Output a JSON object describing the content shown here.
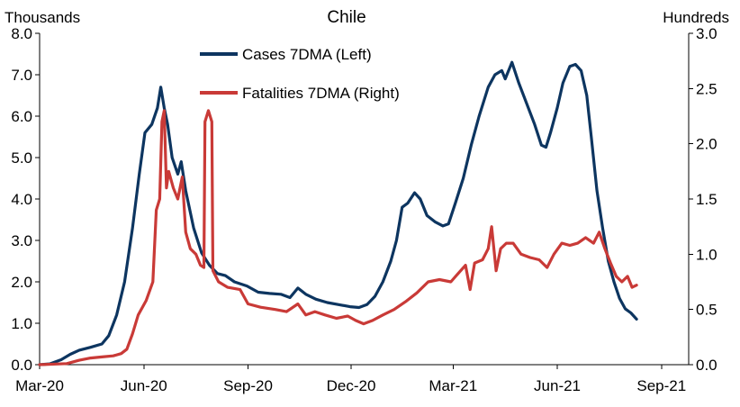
{
  "chart_data": {
    "type": "line",
    "title": "Chile",
    "left_unit_label": "Thousands",
    "right_unit_label": "Hundreds",
    "x_axis": {
      "tick_labels": [
        "Mar-20",
        "Jun-20",
        "Sep-20",
        "Dec-20",
        "Mar-21",
        "Jun-21",
        "Sep-21"
      ],
      "range": [
        "2020-03-01",
        "2021-09-25"
      ]
    },
    "y_left": {
      "range": [
        0,
        8
      ],
      "tick_labels": [
        "0.0",
        "1.0",
        "2.0",
        "3.0",
        "4.0",
        "5.0",
        "6.0",
        "7.0",
        "8.0"
      ]
    },
    "y_right": {
      "range": [
        0,
        3
      ],
      "tick_labels": [
        "0.0",
        "0.5",
        "1.0",
        "1.5",
        "2.0",
        "2.5",
        "3.0"
      ]
    },
    "grid": false,
    "legend_position": "top-center",
    "series": [
      {
        "name": "Cases 7DMA (Left)",
        "axis": "left",
        "color": "#0d3560",
        "points": [
          [
            "2020-03-01",
            0.0
          ],
          [
            "2020-03-10",
            0.02
          ],
          [
            "2020-03-20",
            0.12
          ],
          [
            "2020-03-28",
            0.25
          ],
          [
            "2020-04-05",
            0.35
          ],
          [
            "2020-04-15",
            0.42
          ],
          [
            "2020-04-25",
            0.5
          ],
          [
            "2020-05-01",
            0.7
          ],
          [
            "2020-05-08",
            1.2
          ],
          [
            "2020-05-15",
            2.0
          ],
          [
            "2020-05-22",
            3.3
          ],
          [
            "2020-05-28",
            4.6
          ],
          [
            "2020-06-02",
            5.6
          ],
          [
            "2020-06-08",
            5.8
          ],
          [
            "2020-06-13",
            6.2
          ],
          [
            "2020-06-16",
            6.7
          ],
          [
            "2020-06-19",
            6.2
          ],
          [
            "2020-06-22",
            5.8
          ],
          [
            "2020-06-26",
            5.0
          ],
          [
            "2020-07-01",
            4.6
          ],
          [
            "2020-07-04",
            4.9
          ],
          [
            "2020-07-08",
            4.2
          ],
          [
            "2020-07-15",
            3.3
          ],
          [
            "2020-07-22",
            2.7
          ],
          [
            "2020-07-29",
            2.4
          ],
          [
            "2020-08-05",
            2.2
          ],
          [
            "2020-08-12",
            2.15
          ],
          [
            "2020-08-20",
            2.0
          ],
          [
            "2020-08-31",
            1.9
          ],
          [
            "2020-09-10",
            1.75
          ],
          [
            "2020-09-20",
            1.72
          ],
          [
            "2020-09-30",
            1.7
          ],
          [
            "2020-10-08",
            1.62
          ],
          [
            "2020-10-15",
            1.85
          ],
          [
            "2020-10-22",
            1.7
          ],
          [
            "2020-10-31",
            1.58
          ],
          [
            "2020-11-10",
            1.5
          ],
          [
            "2020-11-20",
            1.45
          ],
          [
            "2020-11-30",
            1.4
          ],
          [
            "2020-12-08",
            1.38
          ],
          [
            "2020-12-15",
            1.45
          ],
          [
            "2020-12-22",
            1.65
          ],
          [
            "2020-12-29",
            2.0
          ],
          [
            "2021-01-05",
            2.5
          ],
          [
            "2021-01-10",
            3.0
          ],
          [
            "2021-01-15",
            3.8
          ],
          [
            "2021-01-20",
            3.9
          ],
          [
            "2021-01-26",
            4.15
          ],
          [
            "2021-01-31",
            4.0
          ],
          [
            "2021-02-06",
            3.6
          ],
          [
            "2021-02-13",
            3.45
          ],
          [
            "2021-02-20",
            3.35
          ],
          [
            "2021-02-25",
            3.4
          ],
          [
            "2021-03-03",
            3.9
          ],
          [
            "2021-03-10",
            4.5
          ],
          [
            "2021-03-17",
            5.3
          ],
          [
            "2021-03-24",
            6.0
          ],
          [
            "2021-04-01",
            6.7
          ],
          [
            "2021-04-07",
            7.0
          ],
          [
            "2021-04-13",
            7.1
          ],
          [
            "2021-04-16",
            6.9
          ],
          [
            "2021-04-22",
            7.3
          ],
          [
            "2021-04-28",
            6.8
          ],
          [
            "2021-05-05",
            6.3
          ],
          [
            "2021-05-12",
            5.8
          ],
          [
            "2021-05-18",
            5.3
          ],
          [
            "2021-05-22",
            5.25
          ],
          [
            "2021-05-26",
            5.6
          ],
          [
            "2021-06-01",
            6.2
          ],
          [
            "2021-06-06",
            6.8
          ],
          [
            "2021-06-12",
            7.2
          ],
          [
            "2021-06-17",
            7.25
          ],
          [
            "2021-06-22",
            7.1
          ],
          [
            "2021-06-27",
            6.5
          ],
          [
            "2021-07-01",
            5.5
          ],
          [
            "2021-07-06",
            4.2
          ],
          [
            "2021-07-11",
            3.3
          ],
          [
            "2021-07-16",
            2.5
          ],
          [
            "2021-07-21",
            2.0
          ],
          [
            "2021-07-26",
            1.6
          ],
          [
            "2021-07-31",
            1.35
          ],
          [
            "2021-08-05",
            1.25
          ],
          [
            "2021-08-10",
            1.1
          ]
        ]
      },
      {
        "name": "Fatalities 7DMA (Right)",
        "axis": "right",
        "color": "#c93a37",
        "points": [
          [
            "2020-03-01",
            0.0
          ],
          [
            "2020-03-25",
            0.01
          ],
          [
            "2020-04-05",
            0.04
          ],
          [
            "2020-04-15",
            0.06
          ],
          [
            "2020-04-25",
            0.07
          ],
          [
            "2020-05-05",
            0.08
          ],
          [
            "2020-05-12",
            0.1
          ],
          [
            "2020-05-17",
            0.14
          ],
          [
            "2020-05-22",
            0.28
          ],
          [
            "2020-05-27",
            0.45
          ],
          [
            "2020-06-03",
            0.58
          ],
          [
            "2020-06-09",
            0.75
          ],
          [
            "2020-06-12",
            1.4
          ],
          [
            "2020-06-15",
            1.5
          ],
          [
            "2020-06-17",
            2.2
          ],
          [
            "2020-06-19",
            2.3
          ],
          [
            "2020-06-21",
            1.6
          ],
          [
            "2020-06-23",
            1.75
          ],
          [
            "2020-06-27",
            1.6
          ],
          [
            "2020-07-01",
            1.5
          ],
          [
            "2020-07-05",
            1.7
          ],
          [
            "2020-07-08",
            1.2
          ],
          [
            "2020-07-12",
            1.05
          ],
          [
            "2020-07-17",
            1.0
          ],
          [
            "2020-07-21",
            0.9
          ],
          [
            "2020-07-24",
            0.88
          ],
          [
            "2020-07-25",
            2.2
          ],
          [
            "2020-07-28",
            2.3
          ],
          [
            "2020-07-31",
            2.2
          ],
          [
            "2020-08-01",
            0.85
          ],
          [
            "2020-08-06",
            0.75
          ],
          [
            "2020-08-14",
            0.7
          ],
          [
            "2020-08-25",
            0.68
          ],
          [
            "2020-09-01",
            0.55
          ],
          [
            "2020-09-12",
            0.52
          ],
          [
            "2020-09-25",
            0.5
          ],
          [
            "2020-10-05",
            0.48
          ],
          [
            "2020-10-15",
            0.55
          ],
          [
            "2020-10-22",
            0.45
          ],
          [
            "2020-10-30",
            0.48
          ],
          [
            "2020-11-08",
            0.45
          ],
          [
            "2020-11-18",
            0.42
          ],
          [
            "2020-11-28",
            0.44
          ],
          [
            "2020-12-05",
            0.4
          ],
          [
            "2020-12-12",
            0.37
          ],
          [
            "2020-12-20",
            0.4
          ],
          [
            "2020-12-29",
            0.45
          ],
          [
            "2021-01-08",
            0.5
          ],
          [
            "2021-01-18",
            0.57
          ],
          [
            "2021-01-28",
            0.65
          ],
          [
            "2021-02-07",
            0.75
          ],
          [
            "2021-02-17",
            0.77
          ],
          [
            "2021-02-27",
            0.75
          ],
          [
            "2021-03-05",
            0.82
          ],
          [
            "2021-03-12",
            0.9
          ],
          [
            "2021-03-16",
            0.68
          ],
          [
            "2021-03-20",
            0.92
          ],
          [
            "2021-03-27",
            0.95
          ],
          [
            "2021-04-01",
            1.05
          ],
          [
            "2021-04-04",
            1.25
          ],
          [
            "2021-04-08",
            0.85
          ],
          [
            "2021-04-12",
            1.05
          ],
          [
            "2021-04-17",
            1.1
          ],
          [
            "2021-04-23",
            1.1
          ],
          [
            "2021-04-30",
            1.0
          ],
          [
            "2021-05-08",
            0.97
          ],
          [
            "2021-05-16",
            0.95
          ],
          [
            "2021-05-23",
            0.88
          ],
          [
            "2021-05-29",
            1.0
          ],
          [
            "2021-06-05",
            1.1
          ],
          [
            "2021-06-12",
            1.08
          ],
          [
            "2021-06-19",
            1.1
          ],
          [
            "2021-06-26",
            1.15
          ],
          [
            "2021-07-03",
            1.1
          ],
          [
            "2021-07-08",
            1.2
          ],
          [
            "2021-07-13",
            1.05
          ],
          [
            "2021-07-18",
            0.92
          ],
          [
            "2021-07-23",
            0.8
          ],
          [
            "2021-07-28",
            0.75
          ],
          [
            "2021-08-02",
            0.8
          ],
          [
            "2021-08-06",
            0.7
          ],
          [
            "2021-08-10",
            0.72
          ]
        ]
      }
    ]
  }
}
